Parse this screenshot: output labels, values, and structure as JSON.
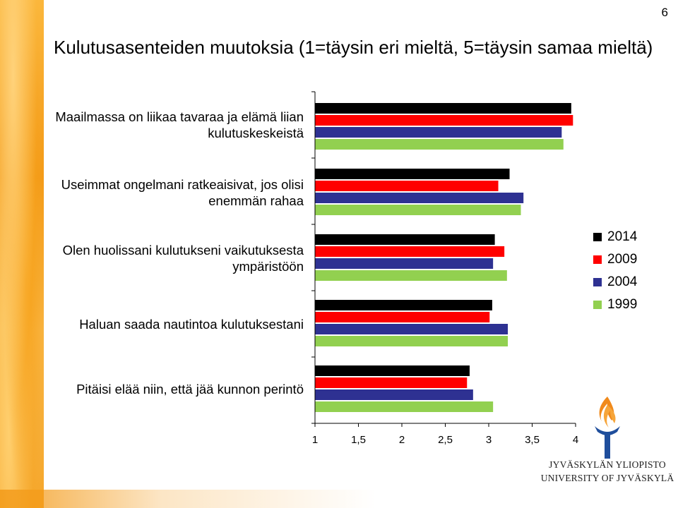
{
  "page_number": "6",
  "title": "Kulutusasenteiden muutoksia (1=täysin eri mieltä, 5=täysin samaa mieltä)",
  "university": {
    "name_fi": "JYVÄSKYLÄN YLIOPISTO",
    "name_en": "UNIVERSITY OF JYVÄSKYLÄ",
    "logo_icon": "torch-flame-icon",
    "colors": {
      "flame": "#f08a1c",
      "pillar": "#1f4e9c"
    }
  },
  "chart_data": {
    "type": "bar",
    "orientation": "horizontal",
    "categories": [
      "Maailmassa on liikaa tavaraa ja elämä liian kulutuskeskeistä",
      "Useimmat ongelmani ratkeaisivat, jos olisi enemmän rahaa",
      "Olen huolissani kulutukseni vaikutuksesta ympäristöön",
      "Haluan saada nautintoa kulutuksestani",
      "Pitäisi elää niin, että jää kunnon perintö"
    ],
    "series": [
      {
        "name": "2014",
        "color": "#000000",
        "values": [
          3.95,
          3.24,
          3.07,
          3.04,
          2.78
        ]
      },
      {
        "name": "2009",
        "color": "#ff0000",
        "values": [
          3.97,
          3.11,
          3.18,
          3.01,
          2.75
        ]
      },
      {
        "name": "2004",
        "color": "#2e3192",
        "values": [
          3.84,
          3.4,
          3.05,
          3.22,
          2.82
        ]
      },
      {
        "name": "1999",
        "color": "#92d050",
        "values": [
          3.86,
          3.37,
          3.21,
          3.22,
          3.05
        ]
      }
    ],
    "xlim": [
      1,
      4
    ],
    "x_ticks": [
      "1",
      "1,5",
      "2",
      "2,5",
      "3",
      "3,5",
      "4"
    ],
    "xlabel": "",
    "ylabel": "",
    "grid": false,
    "legend_position": "right"
  }
}
